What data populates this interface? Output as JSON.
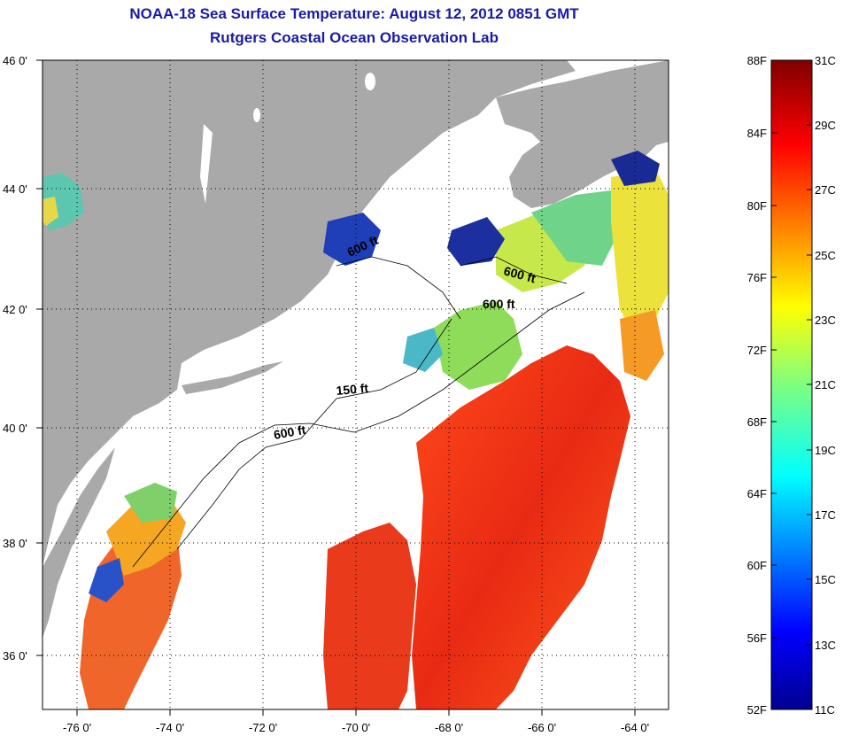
{
  "title": {
    "line1": "NOAA-18 Sea Surface Temperature:  August 12, 2012 0851 GMT",
    "line2": "Rutgers Coastal Ocean Observation Lab"
  },
  "axes": {
    "lat_labels": [
      "46 0'",
      "44 0'",
      "42 0'",
      "40 0'",
      "38 0'",
      "36 0'"
    ],
    "lon_labels": [
      "-76 0'",
      "-74 0'",
      "-72 0'",
      "-70 0'",
      "-68 0'",
      "-66 0'",
      "-64 0'"
    ]
  },
  "contours": {
    "c1": "600 ft",
    "c2": "600 ft",
    "c3": "600 ft",
    "c4": "150 ft",
    "c5": "600 ft"
  },
  "colorbar": {
    "fahrenheit": [
      "88F",
      "84F",
      "80F",
      "76F",
      "72F",
      "68F",
      "64F",
      "60F",
      "56F",
      "52F"
    ],
    "celsius": [
      "31C",
      "29C",
      "27C",
      "25C",
      "23C",
      "21C",
      "19C",
      "17C",
      "15C",
      "13C",
      "11C"
    ]
  },
  "colors": {
    "land": "#a9a9a9",
    "title": "#1a1aa6",
    "warm": "#e8311c",
    "cool": "#2a6fd6"
  }
}
